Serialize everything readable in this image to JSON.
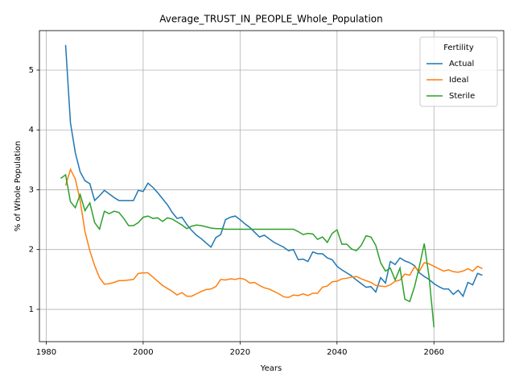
{
  "chart_data": {
    "type": "line",
    "title": "Average_TRUST_IN_PEOPLE_Whole_Population",
    "x_label": "Years",
    "y_label": "% of Whole Population",
    "x": [
      1983,
      1984,
      1985,
      1986,
      1987,
      1988,
      1989,
      1990,
      1991,
      1992,
      1993,
      1994,
      1995,
      1996,
      1997,
      1998,
      1999,
      2000,
      2001,
      2002,
      2003,
      2004,
      2005,
      2006,
      2007,
      2008,
      2009,
      2010,
      2011,
      2012,
      2013,
      2014,
      2015,
      2016,
      2017,
      2018,
      2019,
      2020,
      2021,
      2022,
      2023,
      2024,
      2025,
      2026,
      2027,
      2028,
      2029,
      2030,
      2031,
      2032,
      2033,
      2034,
      2035,
      2036,
      2037,
      2038,
      2039,
      2040,
      2041,
      2042,
      2043,
      2044,
      2045,
      2046,
      2047,
      2048,
      2049,
      2050,
      2051,
      2052,
      2053,
      2054,
      2055,
      2056,
      2057,
      2058,
      2059,
      2060,
      2061,
      2062,
      2063,
      2064,
      2065,
      2066,
      2067,
      2068,
      2069,
      2070
    ],
    "series": [
      {
        "name": "Actual",
        "color": "#1f77b4",
        "values": [
          null,
          5.42,
          4.12,
          3.62,
          3.3,
          3.15,
          3.1,
          2.82,
          2.9,
          2.99,
          2.93,
          2.87,
          2.82,
          2.82,
          2.82,
          2.82,
          2.99,
          2.97,
          3.11,
          3.04,
          2.95,
          2.85,
          2.75,
          2.62,
          2.52,
          2.54,
          2.42,
          2.32,
          2.24,
          2.18,
          2.11,
          2.04,
          2.2,
          2.25,
          2.5,
          2.54,
          2.56,
          2.5,
          2.43,
          2.37,
          2.29,
          2.21,
          2.24,
          2.18,
          2.12,
          2.08,
          2.04,
          1.98,
          2.0,
          1.83,
          1.84,
          1.8,
          1.96,
          1.93,
          1.93,
          1.86,
          1.83,
          1.72,
          1.66,
          1.61,
          1.56,
          1.49,
          1.43,
          1.37,
          1.38,
          1.29,
          1.53,
          1.44,
          1.8,
          1.75,
          1.86,
          1.81,
          1.78,
          1.73,
          1.61,
          1.55,
          1.5,
          1.43,
          1.38,
          1.34,
          1.34,
          1.25,
          1.32,
          1.22,
          1.45,
          1.41,
          1.6,
          1.57
        ]
      },
      {
        "name": "Ideal",
        "color": "#ff7f0e",
        "values": [
          null,
          3.07,
          3.34,
          3.18,
          2.82,
          2.3,
          1.98,
          1.73,
          1.53,
          1.42,
          1.43,
          1.45,
          1.48,
          1.48,
          1.49,
          1.5,
          1.6,
          1.61,
          1.61,
          1.54,
          1.47,
          1.4,
          1.35,
          1.3,
          1.24,
          1.28,
          1.22,
          1.22,
          1.26,
          1.3,
          1.33,
          1.34,
          1.38,
          1.5,
          1.49,
          1.51,
          1.5,
          1.52,
          1.5,
          1.44,
          1.45,
          1.4,
          1.36,
          1.34,
          1.3,
          1.26,
          1.21,
          1.2,
          1.24,
          1.23,
          1.26,
          1.23,
          1.27,
          1.27,
          1.37,
          1.39,
          1.46,
          1.47,
          1.51,
          1.52,
          1.54,
          1.55,
          1.51,
          1.48,
          1.45,
          1.4,
          1.39,
          1.38,
          1.41,
          1.47,
          1.49,
          1.59,
          1.57,
          1.71,
          1.64,
          1.78,
          1.76,
          1.72,
          1.68,
          1.64,
          1.66,
          1.63,
          1.62,
          1.64,
          1.68,
          1.64,
          1.72,
          1.68
        ]
      },
      {
        "name": "Sterile",
        "color": "#2ca02c",
        "values": [
          3.19,
          3.25,
          2.8,
          2.7,
          2.92,
          2.65,
          2.78,
          2.45,
          2.34,
          2.64,
          2.6,
          2.64,
          2.62,
          2.52,
          2.4,
          2.4,
          2.45,
          2.54,
          2.56,
          2.52,
          2.53,
          2.47,
          2.53,
          2.51,
          2.46,
          2.41,
          2.35,
          2.39,
          2.41,
          2.4,
          2.38,
          2.36,
          2.35,
          2.35,
          2.34,
          2.34,
          2.34,
          2.34,
          2.34,
          2.34,
          2.34,
          2.34,
          2.34,
          2.34,
          2.34,
          2.34,
          2.34,
          2.34,
          2.34,
          2.3,
          2.25,
          2.27,
          2.26,
          2.17,
          2.21,
          2.12,
          2.27,
          2.33,
          2.09,
          2.09,
          2.01,
          1.98,
          2.07,
          2.23,
          2.21,
          2.07,
          1.78,
          1.64,
          1.69,
          1.49,
          1.69,
          1.17,
          1.13,
          1.38,
          1.72,
          2.1,
          1.54,
          0.7,
          null,
          null,
          null,
          null,
          null,
          null,
          null,
          null,
          null,
          null
        ]
      }
    ],
    "xlim": [
      1978.6,
      2074.4
    ],
    "ylim": [
      0.46,
      5.66
    ],
    "xticks": [
      1980,
      2000,
      2020,
      2040,
      2060
    ],
    "yticks": [
      1,
      2,
      3,
      4,
      5
    ],
    "grid": true,
    "legend_title": "Fertility",
    "legend_loc": "upper right"
  }
}
